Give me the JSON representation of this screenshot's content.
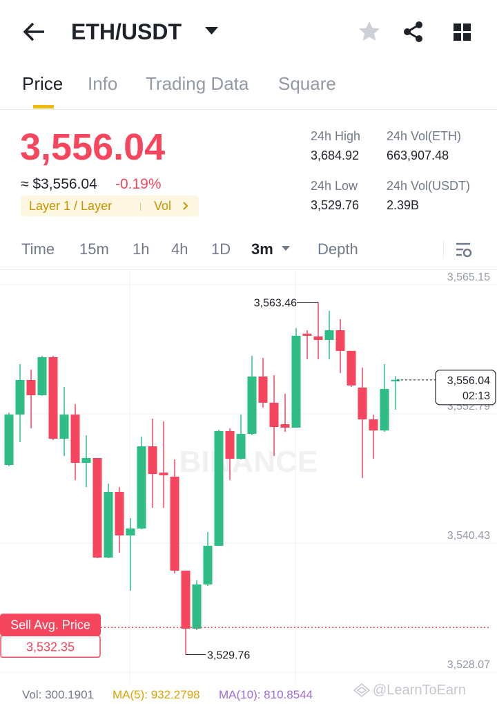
{
  "header": {
    "title": "ETH/USDT"
  },
  "tabs": [
    "Price",
    "Info",
    "Trading Data",
    "Square"
  ],
  "price": {
    "last": "3,556.04",
    "fiat": "≈ $3,556.04",
    "change": "-0.19%",
    "tag": "Layer 1 / Layer",
    "tag_link": "Vol"
  },
  "stats": [
    {
      "label": "24h High",
      "value": "3,684.92"
    },
    {
      "label": "24h Vol(ETH)",
      "value": "663,907.48"
    },
    {
      "label": "24h Low",
      "value": "3,529.76"
    },
    {
      "label": "24h Vol(USDT)",
      "value": "2.39B"
    }
  ],
  "intervals": [
    "Time",
    "15m",
    "1h",
    "4h",
    "1D",
    "3m",
    "Depth"
  ],
  "chart_data": {
    "type": "candlestick",
    "watermark": "BINANCE",
    "up_color": "#2ebd85",
    "down_color": "#f6465d",
    "ylim": [
      3526.95,
      3566.47
    ],
    "yticks": [
      {
        "value": 3565.15,
        "label": "3,565.15"
      },
      {
        "value": 3552.79,
        "label": "3,552.79"
      },
      {
        "value": 3540.43,
        "label": "3,540.43"
      },
      {
        "value": 3528.07,
        "label": "3,528.07"
      }
    ],
    "candles": [
      {
        "open": 3547.9,
        "high": 3552.92,
        "low": 3547.77,
        "close": 3552.72
      },
      {
        "open": 3552.72,
        "high": 3557.55,
        "low": 3550.08,
        "close": 3556.03
      },
      {
        "open": 3556.03,
        "high": 3557.02,
        "low": 3551.4,
        "close": 3554.57
      },
      {
        "open": 3554.57,
        "high": 3558.34,
        "low": 3554.51,
        "close": 3558.21
      },
      {
        "open": 3558.21,
        "high": 3558.34,
        "low": 3550.28,
        "close": 3550.41
      },
      {
        "open": 3550.41,
        "high": 3555.37,
        "low": 3548.76,
        "close": 3552.72
      },
      {
        "open": 3552.72,
        "high": 3553.72,
        "low": 3546.45,
        "close": 3548.1
      },
      {
        "open": 3548.1,
        "high": 3550.74,
        "low": 3545.78,
        "close": 3548.56
      },
      {
        "open": 3548.56,
        "high": 3548.56,
        "low": 3538.98,
        "close": 3539.04
      },
      {
        "open": 3539.04,
        "high": 3546.11,
        "low": 3538.98,
        "close": 3545.32
      },
      {
        "open": 3545.32,
        "high": 3545.78,
        "low": 3539.51,
        "close": 3541.16
      },
      {
        "open": 3541.16,
        "high": 3542.81,
        "low": 3535.87,
        "close": 3541.82
      },
      {
        "open": 3541.82,
        "high": 3550.61,
        "low": 3541.75,
        "close": 3549.68
      },
      {
        "open": 3549.68,
        "high": 3552.33,
        "low": 3543.8,
        "close": 3547.04
      },
      {
        "open": 3547.17,
        "high": 3552.06,
        "low": 3543.8,
        "close": 3546.91
      },
      {
        "open": 3546.78,
        "high": 3548.43,
        "low": 3537.52,
        "close": 3537.79
      },
      {
        "open": 3537.79,
        "high": 3537.79,
        "low": 3529.76,
        "close": 3532.24
      },
      {
        "open": 3532.24,
        "high": 3536.86,
        "low": 3532.1,
        "close": 3536.47
      },
      {
        "open": 3536.47,
        "high": 3541.49,
        "low": 3536.33,
        "close": 3540.17
      },
      {
        "open": 3540.17,
        "high": 3551.27,
        "low": 3540.17,
        "close": 3551.14
      },
      {
        "open": 3551.14,
        "high": 3551.4,
        "low": 3546.45,
        "close": 3548.49
      },
      {
        "open": 3548.49,
        "high": 3552.72,
        "low": 3548.43,
        "close": 3550.87
      },
      {
        "open": 3550.87,
        "high": 3558.34,
        "low": 3550.74,
        "close": 3556.36
      },
      {
        "open": 3556.36,
        "high": 3558.14,
        "low": 3553.39,
        "close": 3553.85
      },
      {
        "open": 3553.85,
        "high": 3556.49,
        "low": 3548.76,
        "close": 3551.53
      },
      {
        "open": 3551.8,
        "high": 3554.71,
        "low": 3551.07,
        "close": 3551.47
      },
      {
        "open": 3551.47,
        "high": 3560.99,
        "low": 3551.47,
        "close": 3560.26
      },
      {
        "open": 3560.46,
        "high": 3560.79,
        "low": 3558.01,
        "close": 3560.26
      },
      {
        "open": 3560.19,
        "high": 3563.46,
        "low": 3558.01,
        "close": 3559.86
      },
      {
        "open": 3559.86,
        "high": 3562.64,
        "low": 3558.01,
        "close": 3560.79
      },
      {
        "open": 3560.79,
        "high": 3561.85,
        "low": 3556.69,
        "close": 3558.81
      },
      {
        "open": 3558.81,
        "high": 3558.81,
        "low": 3555.37,
        "close": 3555.5
      },
      {
        "open": 3555.3,
        "high": 3557.22,
        "low": 3546.64,
        "close": 3552.26
      },
      {
        "open": 3552.26,
        "high": 3552.72,
        "low": 3548.49,
        "close": 3551.2
      },
      {
        "open": 3551.2,
        "high": 3557.55,
        "low": 3551.07,
        "close": 3555.17
      },
      {
        "open": 3555.9,
        "high": 3556.4,
        "low": 3553.19,
        "close": 3556.04
      }
    ],
    "high_marker": {
      "value": 3563.46,
      "label": "3,563.46"
    },
    "low_marker": {
      "value": 3529.76,
      "label": "3,529.76"
    },
    "last_marker": {
      "value": 3556.04,
      "label": "3,556.04",
      "countdown": "02:13"
    },
    "sell_avg": {
      "title": "Sell Avg. Price",
      "value": 3532.35,
      "label": "3,532.35"
    }
  },
  "indicators": [
    {
      "text": "Vol: 300.1901",
      "color": "#707a8a"
    },
    {
      "text": "MA(5): 932.2798",
      "color": "#d9a406"
    },
    {
      "text": "MA(10): 810.8544",
      "color": "#9f6bd6"
    }
  ],
  "footer_watermark": "@LearnToEarn"
}
